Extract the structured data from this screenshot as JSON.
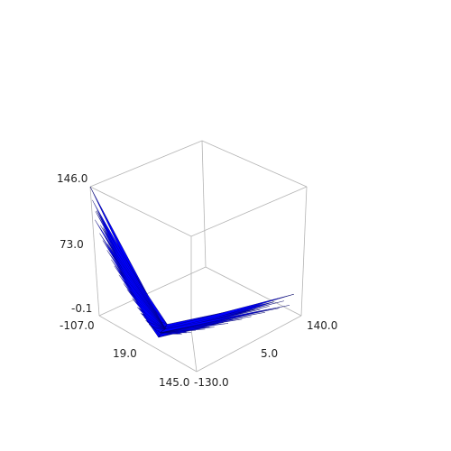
{
  "chart_data": {
    "type": "surface",
    "title": "",
    "xlabel": "",
    "ylabel": "",
    "zlabel": "",
    "x_ticks": [
      "-107.0",
      "19.0",
      "145.0"
    ],
    "y_ticks": [
      "-130.0",
      "5.0",
      "140.0"
    ],
    "z_ticks": [
      "-0.1",
      "73.0",
      "146.0"
    ],
    "xlim": [
      -107.0,
      145.0
    ],
    "ylim": [
      -130.0,
      140.0
    ],
    "zlim": [
      -0.1,
      146.0
    ],
    "grid": false,
    "legend": "none",
    "surface_color": "#0000ff",
    "edge_color": "#000060",
    "box_color": "#b4b4b4",
    "series": [
      {
        "values": [
          {
            "x": -107.0,
            "y": -130.0,
            "z": 146.0
          },
          {
            "x": -100.0,
            "y": -124.0,
            "z": 120.0
          },
          {
            "x": -92.0,
            "y": -118.0,
            "z": 102.0
          },
          {
            "x": -86.0,
            "y": -112.0,
            "z": 86.0
          },
          {
            "x": -78.0,
            "y": -106.0,
            "z": 70.0
          },
          {
            "x": -70.0,
            "y": -100.0,
            "z": 56.0
          },
          {
            "x": -60.0,
            "y": -94.0,
            "z": 42.0
          },
          {
            "x": -50.0,
            "y": -88.0,
            "z": 28.0
          },
          {
            "x": -40.0,
            "y": -82.0,
            "z": 14.0
          },
          {
            "x": -30.0,
            "y": -76.0,
            "z": 4.0
          },
          {
            "x": -20.0,
            "y": -70.0,
            "z": 0.0
          },
          {
            "x": 0.0,
            "y": -60.0,
            "z": 0.0
          },
          {
            "x": 20.0,
            "y": -40.0,
            "z": 2.0
          },
          {
            "x": 40.0,
            "y": -10.0,
            "z": 10.0
          },
          {
            "x": 60.0,
            "y": 20.0,
            "z": 18.0
          },
          {
            "x": 80.0,
            "y": 50.0,
            "z": 28.0
          },
          {
            "x": 100.0,
            "y": 80.0,
            "z": 38.0
          },
          {
            "x": 120.0,
            "y": 110.0,
            "z": 48.0
          },
          {
            "x": 145.0,
            "y": 140.0,
            "z": 60.0
          }
        ]
      }
    ]
  }
}
